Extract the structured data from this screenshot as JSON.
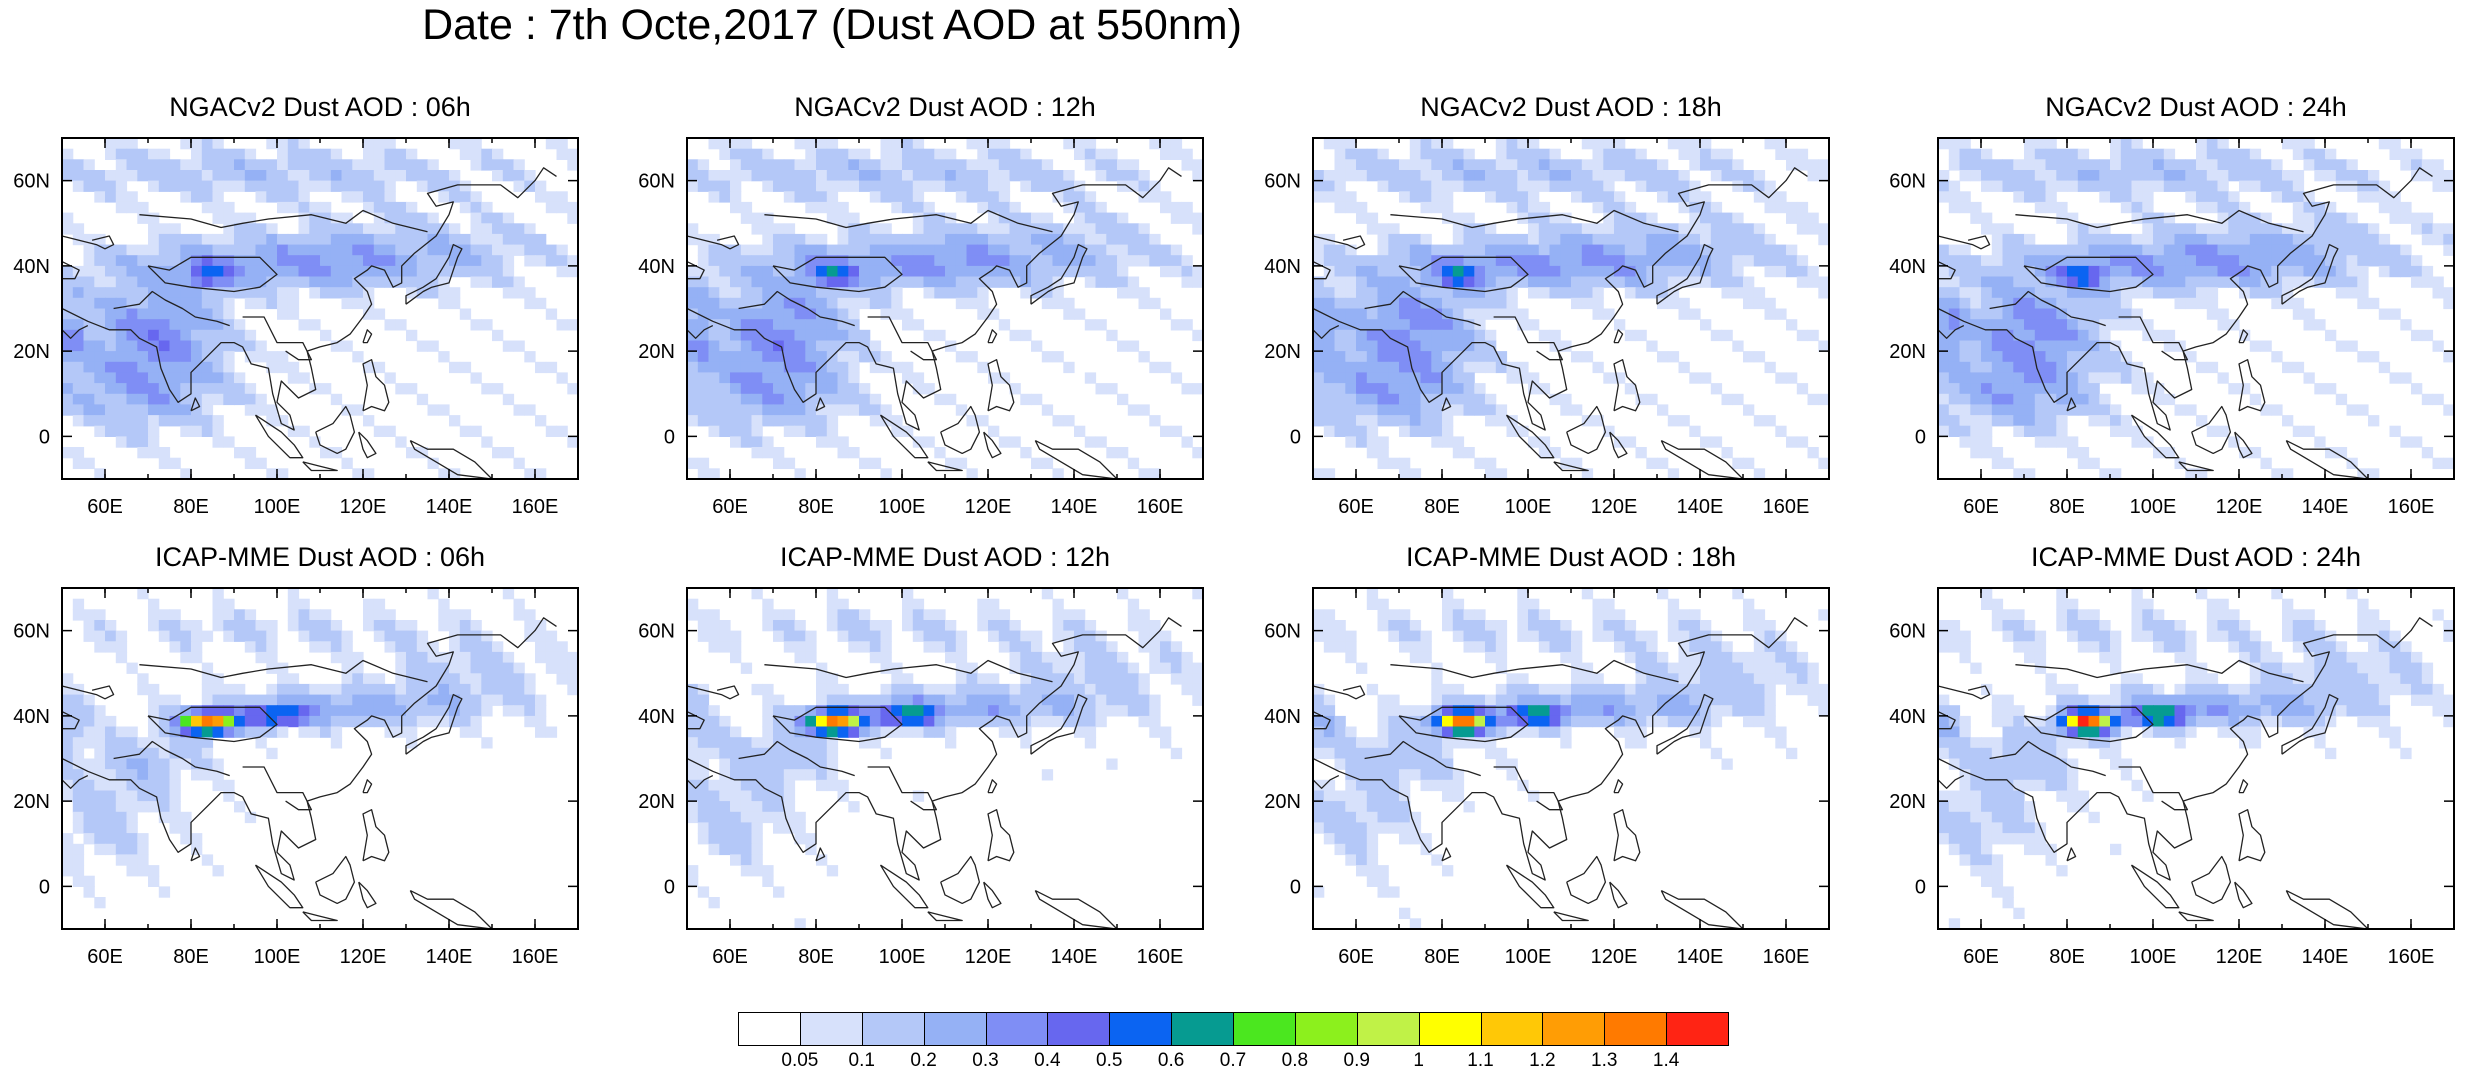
{
  "title": "Date : 7th Octe,2017 (Dust AOD at 550nm)",
  "panels": [
    {
      "title": "NGACv2 Dust AOD : 06h",
      "model": "ngac",
      "hour": "06h"
    },
    {
      "title": "NGACv2 Dust AOD : 12h",
      "model": "ngac",
      "hour": "12h"
    },
    {
      "title": "NGACv2 Dust AOD : 18h",
      "model": "ngac",
      "hour": "18h"
    },
    {
      "title": "NGACv2 Dust AOD : 24h",
      "model": "ngac",
      "hour": "24h"
    },
    {
      "title": "ICAP-MME Dust AOD : 06h",
      "model": "icap",
      "hour": "06h"
    },
    {
      "title": "ICAP-MME Dust AOD : 12h",
      "model": "icap",
      "hour": "12h"
    },
    {
      "title": "ICAP-MME Dust AOD : 18h",
      "model": "icap",
      "hour": "18h"
    },
    {
      "title": "ICAP-MME Dust AOD : 24h",
      "model": "icap",
      "hour": "24h"
    }
  ],
  "map": {
    "lon_range": [
      50,
      170
    ],
    "lat_range": [
      -10,
      70
    ],
    "lon_ticks": [
      "60E",
      "80E",
      "100E",
      "120E",
      "140E",
      "160E"
    ],
    "lat_ticks": [
      "60N",
      "40N",
      "20N",
      "0"
    ]
  },
  "colorbar": {
    "labels": [
      "0.05",
      "0.1",
      "0.2",
      "0.3",
      "0.4",
      "0.5",
      "0.6",
      "0.7",
      "0.8",
      "0.9",
      "1",
      "1.1",
      "1.2",
      "1.3",
      "1.4"
    ],
    "colors": [
      "#ffffff",
      "#d7e1fb",
      "#b4c8f8",
      "#95b1f5",
      "#7f8ef5",
      "#6767ef",
      "#0b64f2",
      "#069b91",
      "#4be71f",
      "#8cf01d",
      "#c0f247",
      "#ffff00",
      "#ffc806",
      "#ff9d05",
      "#ff7a00",
      "#ff2414"
    ]
  }
}
